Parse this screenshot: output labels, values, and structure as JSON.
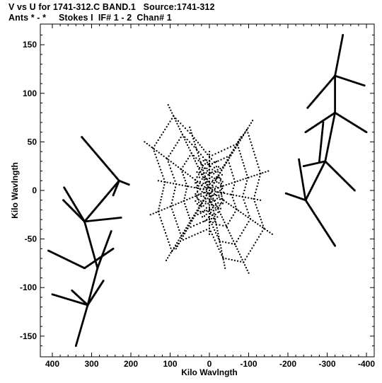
{
  "header": {
    "line1": "V vs U for 1741-312.C BAND.1   Source:1741-312",
    "line2": "Ants * - *     Stokes I  IF# 1 - 2  Chan# 1"
  },
  "chart_data": {
    "type": "scatter",
    "xlabel": "Kilo Wavlngth",
    "ylabel": "Kilo Wavlngth",
    "xlim": [
      410,
      -410
    ],
    "ylim": [
      -170,
      170
    ],
    "x_ticks": [
      400,
      300,
      200,
      100,
      0,
      -100,
      -200,
      -300,
      -400
    ],
    "x_tick_labels": [
      "400",
      "300",
      "200",
      "100",
      "0",
      "-100",
      "-200",
      "-300",
      "-400"
    ],
    "y_ticks": [
      -150,
      -100,
      -50,
      0,
      50,
      100,
      150
    ],
    "y_tick_labels": [
      "-150",
      "-100",
      "-50",
      "0",
      "50",
      "100",
      "150"
    ],
    "grid": false,
    "marker_color": "#000000",
    "tracks": [
      {
        "from": [
          340,
          -160
        ],
        "to": [
          310,
          -118
        ]
      },
      {
        "from": [
          310,
          -118
        ],
        "to": [
          285,
          -80
        ]
      },
      {
        "from": [
          285,
          -80
        ],
        "to": [
          250,
          -42
        ]
      },
      {
        "from": [
          350,
          -103
        ],
        "to": [
          310,
          -118
        ]
      },
      {
        "from": [
          310,
          -118
        ],
        "to": [
          270,
          -93
        ]
      },
      {
        "from": [
          400,
          -107
        ],
        "to": [
          310,
          -118
        ]
      },
      {
        "from": [
          410,
          -62
        ],
        "to": [
          318,
          -80
        ]
      },
      {
        "from": [
          318,
          -80
        ],
        "to": [
          245,
          -60
        ]
      },
      {
        "from": [
          285,
          -80
        ],
        "to": [
          318,
          -32
        ]
      },
      {
        "from": [
          318,
          -32
        ],
        "to": [
          230,
          10
        ]
      },
      {
        "from": [
          372,
          -10
        ],
        "to": [
          318,
          -32
        ]
      },
      {
        "from": [
          318,
          -32
        ],
        "to": [
          225,
          -28
        ]
      },
      {
        "from": [
          245,
          -5
        ],
        "to": [
          230,
          10
        ]
      },
      {
        "from": [
          230,
          10
        ],
        "to": [
          205,
          6
        ]
      },
      {
        "from": [
          325,
          55
        ],
        "to": [
          230,
          10
        ]
      },
      {
        "from": [
          370,
          3
        ],
        "to": [
          318,
          -32
        ]
      },
      {
        "from": [
          -340,
          160
        ],
        "to": [
          -320,
          118
        ]
      },
      {
        "from": [
          -320,
          118
        ],
        "to": [
          -250,
          85
        ]
      },
      {
        "from": [
          -320,
          118
        ],
        "to": [
          -395,
          108
        ]
      },
      {
        "from": [
          -320,
          118
        ],
        "to": [
          -320,
          80
        ]
      },
      {
        "from": [
          -320,
          80
        ],
        "to": [
          -400,
          60
        ]
      },
      {
        "from": [
          -320,
          80
        ],
        "to": [
          -245,
          60
        ]
      },
      {
        "from": [
          -320,
          80
        ],
        "to": [
          -295,
          30
        ]
      },
      {
        "from": [
          -295,
          30
        ],
        "to": [
          -370,
          0
        ]
      },
      {
        "from": [
          -295,
          30
        ],
        "to": [
          -240,
          25
        ]
      },
      {
        "from": [
          -295,
          30
        ],
        "to": [
          -245,
          -10
        ]
      },
      {
        "from": [
          -245,
          -10
        ],
        "to": [
          -228,
          32
        ]
      },
      {
        "from": [
          -245,
          -10
        ],
        "to": [
          -320,
          -57
        ]
      },
      {
        "from": [
          -245,
          -10
        ],
        "to": [
          -195,
          -3
        ]
      },
      {
        "from": [
          -290,
          70
        ],
        "to": [
          -280,
          30
        ]
      }
    ],
    "central_cluster": {
      "center": [
        0,
        0
      ],
      "spokes": [
        {
          "to": [
            105,
            88
          ]
        },
        {
          "to": [
            -110,
            72
          ]
        },
        {
          "to": [
            110,
            -72
          ]
        },
        {
          "to": [
            -100,
            -85
          ]
        },
        {
          "to": [
            165,
            50
          ]
        },
        {
          "to": [
            -160,
            -45
          ]
        },
        {
          "to": [
            -150,
            20
          ]
        },
        {
          "to": [
            150,
            -25
          ]
        },
        {
          "to": [
            50,
            65
          ]
        },
        {
          "to": [
            -40,
            -80
          ]
        },
        {
          "to": [
            -80,
            55
          ]
        },
        {
          "to": [
            85,
            -60
          ]
        },
        {
          "to": [
            0,
            40
          ]
        },
        {
          "to": [
            0,
            -45
          ]
        },
        {
          "to": [
            130,
            10
          ]
        },
        {
          "to": [
            -130,
            -10
          ]
        }
      ],
      "web_arcs": 4
    }
  }
}
